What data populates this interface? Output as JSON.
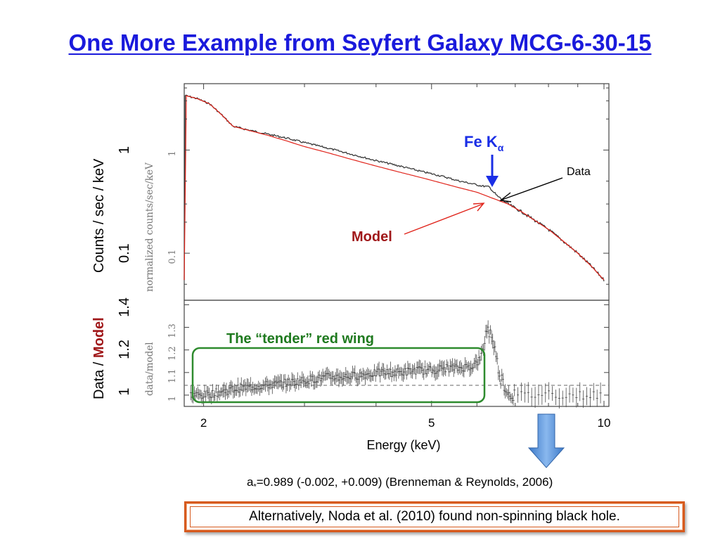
{
  "slide": {
    "title": "One More Example from Seyfert Galaxy MCG-6-30-15",
    "citation_prefix": "a",
    "citation_sub": "*",
    "citation_rest": "=0.989 (-0.002, +0.009) (Brenneman & Reynolds, 2006)",
    "bottom_note": "Alternatively,  Noda et al. (2010) found non-spinning black hole."
  },
  "colors": {
    "title": "#1a1adc",
    "model": "#e0241b",
    "data": "#3a3a3a",
    "fe_arrow": "#1a2ee6",
    "wing_box": "#2e8b2e",
    "down_arrow": "#4f8fd8",
    "note_border": "#d65a1e"
  },
  "chart_data": [
    {
      "type": "line",
      "panel": "spectrum",
      "y_axis_label_outer": "Counts / sec / keV",
      "y_axis_label_inner": "normalized counts/sec/keV",
      "y_scale": "log",
      "x_scale": "log",
      "xlim": [
        1.85,
        10.2
      ],
      "ylim": [
        0.035,
        4.4
      ],
      "y_ticks_outer": [
        "1",
        "0.1"
      ],
      "y_ticks_inner": [
        "1",
        "0.1"
      ],
      "series": [
        {
          "name": "Model",
          "x": [
            1.85,
            1.95,
            2.05,
            2.15,
            2.25,
            2.4,
            2.6,
            2.8,
            3.0,
            3.3,
            3.6,
            4.0,
            4.4,
            4.8,
            5.2,
            5.6,
            6.0,
            6.4,
            6.8,
            7.2,
            7.6,
            8.0,
            8.5,
            9.0,
            9.5,
            10.0
          ],
          "y": [
            3.4,
            3.15,
            2.8,
            2.2,
            1.7,
            1.55,
            1.38,
            1.22,
            1.08,
            0.94,
            0.82,
            0.7,
            0.61,
            0.54,
            0.48,
            0.43,
            0.39,
            0.34,
            0.3,
            0.25,
            0.205,
            0.17,
            0.13,
            0.1,
            0.075,
            0.055
          ]
        },
        {
          "name": "Data",
          "x": [
            1.85,
            1.95,
            2.05,
            2.15,
            2.25,
            2.4,
            2.6,
            2.8,
            3.0,
            3.3,
            3.6,
            4.0,
            4.4,
            4.8,
            5.2,
            5.6,
            5.9,
            6.1,
            6.3,
            6.5,
            6.8,
            7.2,
            7.6,
            8.0,
            8.5,
            9.0,
            9.5,
            10.0
          ],
          "y": [
            3.4,
            3.15,
            2.8,
            2.2,
            1.7,
            1.56,
            1.42,
            1.3,
            1.18,
            1.04,
            0.92,
            0.79,
            0.7,
            0.62,
            0.56,
            0.5,
            0.47,
            0.45,
            0.44,
            0.36,
            0.3,
            0.25,
            0.205,
            0.17,
            0.13,
            0.1,
            0.075,
            0.055
          ]
        }
      ],
      "annotations": [
        "Fe K",
        "α",
        "Data",
        "Model"
      ]
    },
    {
      "type": "scatter",
      "panel": "ratio",
      "x_axis_label": "Energy (keV)",
      "y_axis_label_outer_prefix": "Data / ",
      "y_axis_label_outer_highlight": "Model",
      "y_axis_label_inner": "data/model",
      "x_scale": "log",
      "xlim": [
        1.85,
        10.2
      ],
      "ylim": [
        0.95,
        1.42
      ],
      "x_ticks": [
        "2",
        "5",
        "10"
      ],
      "y_ticks_outer": [
        "1.4",
        "1.2",
        "1"
      ],
      "y_ticks_inner": [
        "1.3",
        "1.2",
        "1.1",
        "1"
      ],
      "reference_line": 1.0,
      "x": [
        1.9,
        2.0,
        2.1,
        2.2,
        2.3,
        2.5,
        2.7,
        2.9,
        3.1,
        3.3,
        3.5,
        3.8,
        4.1,
        4.4,
        4.7,
        5.0,
        5.3,
        5.6,
        5.9,
        6.1,
        6.25,
        6.4,
        6.5,
        6.6,
        6.8,
        7.0,
        7.3,
        7.6,
        8.0,
        8.4,
        8.8,
        9.2,
        9.6,
        10.0
      ],
      "values": [
        1.0,
        1.0,
        1.01,
        1.02,
        1.03,
        1.04,
        1.05,
        1.06,
        1.07,
        1.08,
        1.08,
        1.09,
        1.1,
        1.1,
        1.11,
        1.11,
        1.12,
        1.12,
        1.13,
        1.16,
        1.3,
        1.25,
        1.15,
        1.08,
        1.01,
        1.0,
        1.0,
        1.0,
        1.01,
        1.0,
        1.0,
        1.0,
        1.0,
        1.0
      ],
      "annotations": [
        "The “tender” red wing"
      ]
    }
  ]
}
